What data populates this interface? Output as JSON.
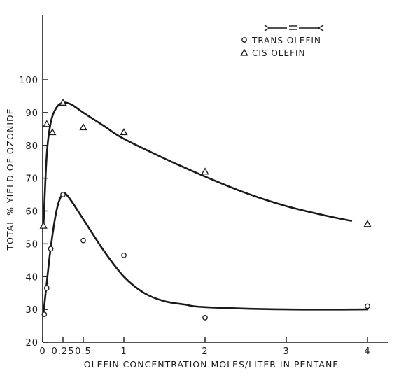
{
  "chart_data": {
    "type": "scatter",
    "title": "",
    "xlabel": "OLEFIN CONCENTRATION MOLES/LITER IN PENTANE",
    "ylabel": "TOTAL % YIELD OF OZONIDE",
    "xlim": [
      0,
      4.25
    ],
    "ylim": [
      20,
      100
    ],
    "x_ticks": [
      0,
      0.25,
      0.5,
      1,
      2,
      3,
      4
    ],
    "x_tick_labels": [
      "0",
      "0.25",
      "0.5",
      "1",
      "2",
      "3",
      "4"
    ],
    "y_ticks": [
      20,
      30,
      40,
      50,
      60,
      70,
      80,
      90,
      100
    ],
    "y_tick_labels": [
      "20",
      "30",
      "40",
      "50",
      "60",
      "70",
      "80",
      "90",
      "100"
    ],
    "grid": false,
    "legend_position": "top-right",
    "series": [
      {
        "name": "TRANS OLEFIN",
        "marker": "circle",
        "points": [
          [
            0.02,
            28.5
          ],
          [
            0.05,
            36.5
          ],
          [
            0.1,
            48.5
          ],
          [
            0.25,
            65
          ],
          [
            0.5,
            51
          ],
          [
            1,
            46.5
          ],
          [
            2,
            27.5
          ],
          [
            4,
            31
          ]
        ],
        "curve": [
          [
            0.01,
            29
          ],
          [
            0.05,
            38
          ],
          [
            0.1,
            49
          ],
          [
            0.17,
            60
          ],
          [
            0.24,
            65
          ],
          [
            0.31,
            64.5
          ],
          [
            0.5,
            57.5
          ],
          [
            0.75,
            48
          ],
          [
            1,
            40
          ],
          [
            1.25,
            35
          ],
          [
            1.5,
            32.5
          ],
          [
            1.75,
            31.5
          ],
          [
            2,
            30.7
          ],
          [
            3,
            30
          ],
          [
            4,
            30
          ]
        ]
      },
      {
        "name": "CIS OLEFIN",
        "marker": "triangle",
        "points": [
          [
            0.01,
            55.5
          ],
          [
            0.05,
            86.5
          ],
          [
            0.12,
            84
          ],
          [
            0.25,
            93
          ],
          [
            0.5,
            85.5
          ],
          [
            1,
            84
          ],
          [
            2,
            72
          ],
          [
            4,
            56
          ]
        ],
        "curve": [
          [
            0.01,
            55.5
          ],
          [
            0.05,
            77
          ],
          [
            0.1,
            87
          ],
          [
            0.17,
            91.5
          ],
          [
            0.25,
            93
          ],
          [
            0.35,
            92.5
          ],
          [
            0.5,
            90
          ],
          [
            0.75,
            86
          ],
          [
            1,
            82
          ],
          [
            1.5,
            76
          ],
          [
            2,
            70.5
          ],
          [
            2.5,
            65.5
          ],
          [
            3,
            61.5
          ],
          [
            3.5,
            58.5
          ],
          [
            3.8,
            57
          ]
        ]
      }
    ],
    "legend_structure": ">=<"
  }
}
